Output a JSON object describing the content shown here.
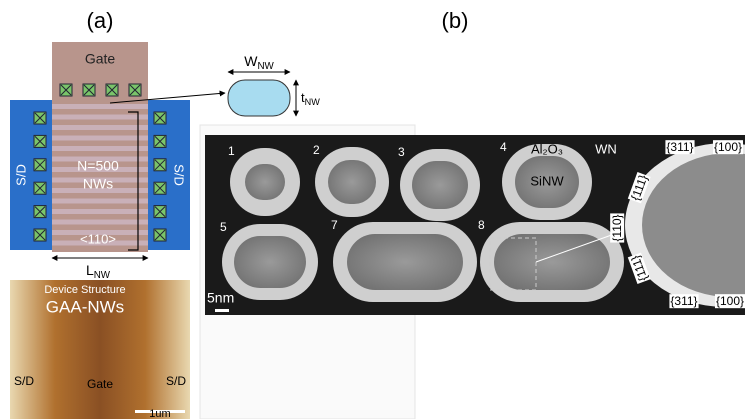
{
  "panel_a": {
    "label": "(a)",
    "gate": "Gate",
    "sd_left": "S/D",
    "sd_right": "S/D",
    "n_wires": "N=500",
    "nws": "NWs",
    "orientation": "<110>",
    "l_nw": {
      "main": "L",
      "sub": "NW"
    },
    "w_nw": {
      "main": "W",
      "sub": "NW"
    },
    "t_nw": {
      "main": "t",
      "sub": "NW"
    },
    "photo": {
      "title": "Device Structure",
      "label": "GAA-NWs",
      "sd_left": "S/D",
      "gate": "Gate",
      "sd_right": "S/D",
      "scale": "1um"
    }
  },
  "panel_b": {
    "label": "(b)",
    "samples": [
      "1",
      "2",
      "3",
      "4",
      "5",
      "7",
      "8"
    ],
    "oxide": "Al₂O₃",
    "metal": "WN",
    "core": "SiNW",
    "scale": "5nm",
    "facets": [
      "{311}",
      "{100}",
      "{111}",
      "{110}",
      "{111}",
      "{311}",
      "{100}"
    ]
  }
}
